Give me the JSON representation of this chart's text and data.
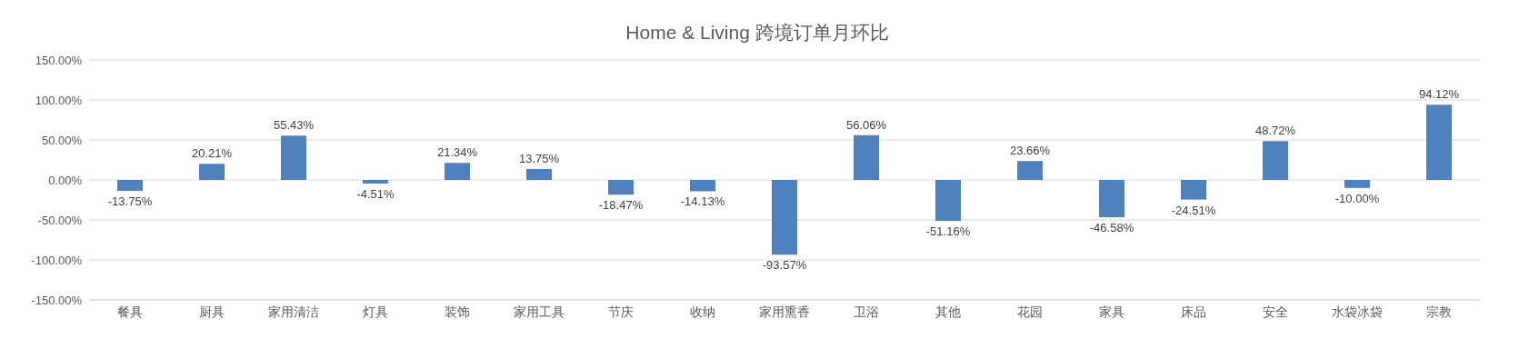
{
  "chart_data": {
    "type": "bar",
    "title": "Home & Living 跨境订单月环比",
    "categories": [
      "餐具",
      "厨具",
      "家用清洁",
      "灯具",
      "装饰",
      "家用工具",
      "节庆",
      "收纳",
      "家用熏香",
      "卫浴",
      "其他",
      "花园",
      "家具",
      "床品",
      "安全",
      "水袋冰袋",
      "宗教"
    ],
    "series": [
      {
        "color": "#4f81bd",
        "values": [
          -13.75,
          20.21,
          55.43,
          -4.51,
          21.34,
          13.75,
          -18.47,
          -14.13,
          -93.57,
          56.06,
          -51.16,
          23.66,
          -46.58,
          -24.51,
          48.72,
          -10.0,
          94.12
        ],
        "value_labels": [
          "-13.75%",
          "20.21%",
          "55.43%",
          "-4.51%",
          "21.34%",
          "13.75%",
          "-18.47%",
          "-14.13%",
          "-93.57%",
          "56.06%",
          "-51.16%",
          "23.66%",
          "-46.58%",
          "-24.51%",
          "48.72%",
          "-10.00%",
          "94.12%"
        ]
      }
    ],
    "ylim": [
      -150,
      150
    ],
    "yticks": [
      {
        "value": -150,
        "label": "-150.00%"
      },
      {
        "value": -100,
        "label": "-100.00%"
      },
      {
        "value": -50,
        "label": "-50.00%"
      },
      {
        "value": 0,
        "label": "0.00%"
      },
      {
        "value": 50,
        "label": "50.00%"
      },
      {
        "value": 100,
        "label": "100.00%"
      },
      {
        "value": 150,
        "label": "150.00%"
      }
    ],
    "grid": "y",
    "legend": false
  }
}
